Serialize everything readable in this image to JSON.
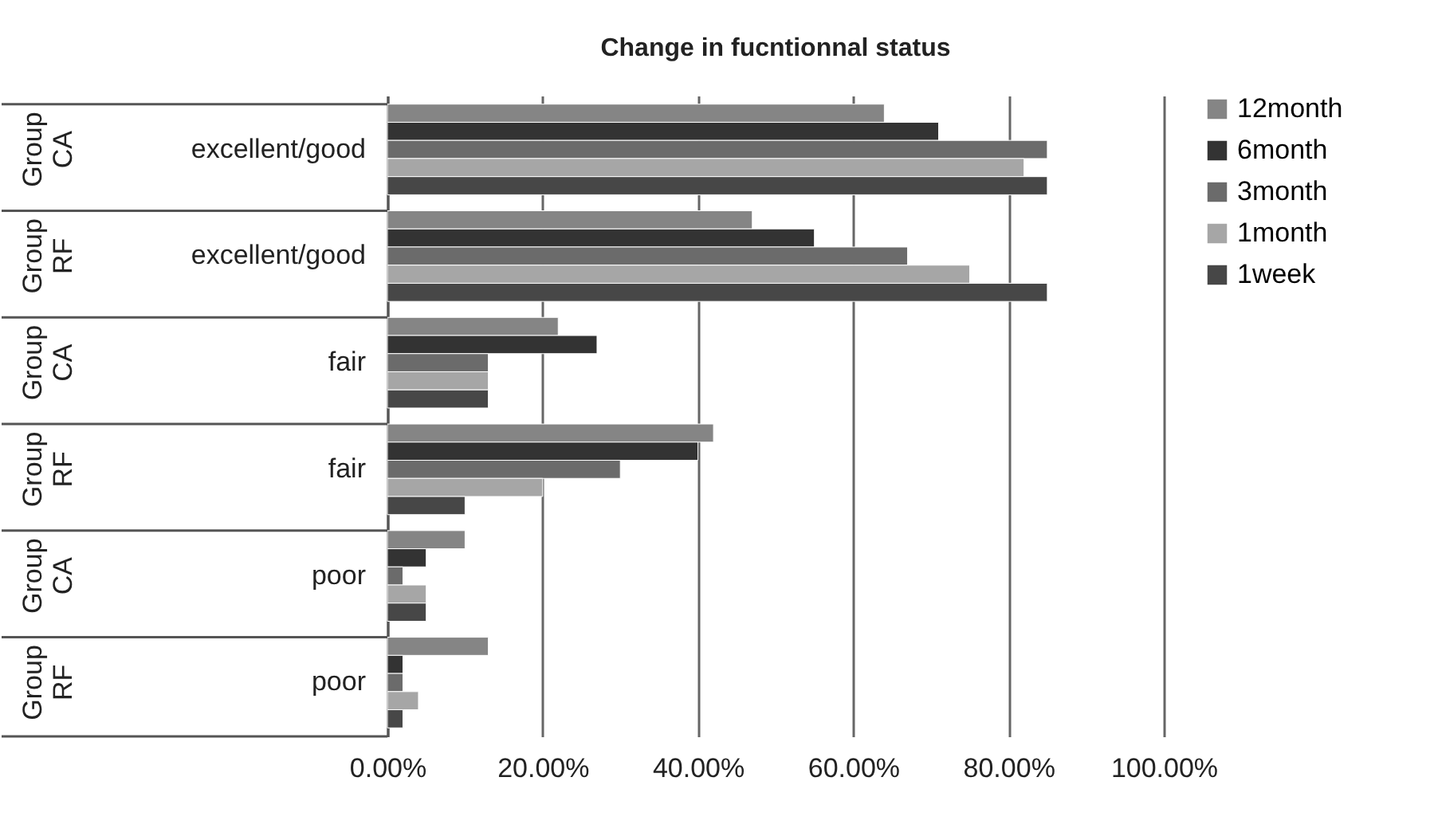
{
  "chart_data": {
    "type": "bar",
    "orientation": "horizontal",
    "title": "Change in fucntionnal status",
    "categories": [
      "excellent/good",
      "excellent/good",
      "fair",
      "fair",
      "poor",
      "poor"
    ],
    "annotations": [
      "Group CA",
      "Group RF",
      "Group CA",
      "Group RF",
      "Group CA",
      "Group RF"
    ],
    "series": [
      {
        "name": "12month",
        "color": "#858585",
        "values": [
          64,
          47,
          22,
          42,
          10,
          13
        ]
      },
      {
        "name": "6month",
        "color": "#333333",
        "values": [
          71,
          55,
          27,
          40,
          5,
          2
        ]
      },
      {
        "name": "3month",
        "color": "#6b6b6b",
        "values": [
          85,
          67,
          13,
          30,
          2,
          2
        ]
      },
      {
        "name": "1month",
        "color": "#a6a6a6",
        "values": [
          82,
          75,
          13,
          20,
          5,
          4
        ]
      },
      {
        "name": "1week",
        "color": "#474747",
        "values": [
          85,
          85,
          13,
          10,
          5,
          2
        ]
      }
    ],
    "xlim": [
      0,
      100
    ],
    "xticks": [
      {
        "value": 0,
        "label": "0.00%"
      },
      {
        "value": 20,
        "label": "20.00%"
      },
      {
        "value": 40,
        "label": "40.00%"
      },
      {
        "value": 60,
        "label": "60.00%"
      },
      {
        "value": 80,
        "label": "80.00%"
      },
      {
        "value": 100,
        "label": "100.00%"
      }
    ],
    "grid": "x",
    "legend": "right"
  }
}
